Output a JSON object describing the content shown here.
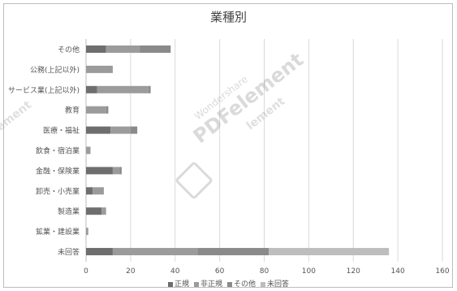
{
  "chart_data": {
    "type": "bar",
    "orientation": "horizontal",
    "stacked": true,
    "title": "業種別",
    "categories": [
      "その他",
      "公務(上記以外)",
      "サービス業(上記以外)",
      "教育",
      "医療・福祉",
      "飲食・宿泊業",
      "金融・保険業",
      "卸売・小売業",
      "製造業",
      "鉱業・建設業",
      "未回答"
    ],
    "series": [
      {
        "name": "正規",
        "values": [
          9,
          0,
          5,
          0,
          11,
          0,
          12,
          3,
          7,
          0,
          12
        ]
      },
      {
        "name": "非正規",
        "values": [
          15,
          12,
          23,
          9,
          9,
          2,
          3,
          5,
          2,
          1,
          38
        ]
      },
      {
        "name": "その他",
        "values": [
          14,
          0,
          1,
          1,
          3,
          0,
          1,
          0,
          0,
          0,
          32
        ]
      },
      {
        "name": "未回答",
        "values": [
          0,
          0,
          0,
          0,
          0,
          0,
          0,
          0,
          0,
          0,
          54
        ]
      }
    ],
    "xlim": [
      0,
      160
    ],
    "xticks": [
      0,
      20,
      40,
      60,
      80,
      100,
      120,
      140,
      160
    ],
    "grid": true,
    "legend_position": "bottom",
    "colors": [
      "#6e6e6e",
      "#9b9b9b",
      "#8a8a8a",
      "#bdbdbd"
    ]
  },
  "watermark": {
    "line1": "Wondershare",
    "line2": "PDFelement",
    "fragment_left": "ement",
    "fragment_mid": "lement"
  }
}
